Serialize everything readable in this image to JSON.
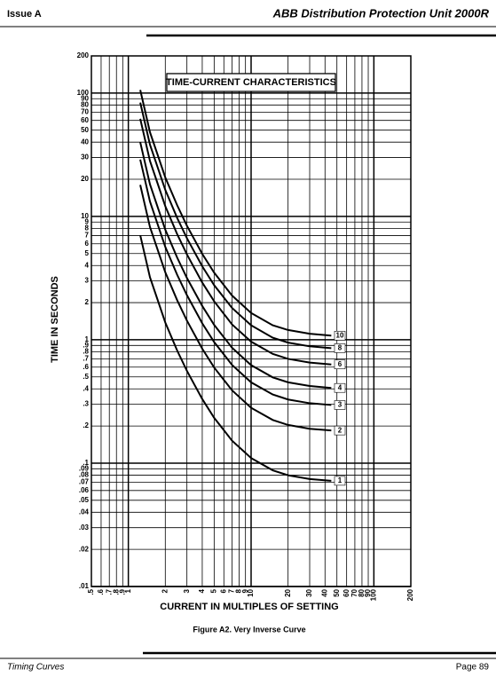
{
  "header": {
    "left": "Issue A",
    "right": "ABB Distribution Protection Unit 2000R"
  },
  "chart_data": {
    "type": "line",
    "title": "TIME-CURRENT CHARACTERISTICS",
    "x_label": "CURRENT IN MULTIPLES OF SETTING",
    "y_label": "TIME IN SECONDS",
    "log_x": true,
    "log_y": true,
    "grid": true,
    "x": [
      1.25,
      1.5,
      2,
      2.5,
      3,
      4,
      5,
      7,
      10,
      15,
      20,
      30,
      45
    ],
    "series": [
      {
        "name": "1",
        "color": "#000000",
        "values": [
          7.04,
          3.21,
          1.38,
          0.817,
          0.56,
          0.331,
          0.233,
          0.152,
          0.11,
          0.0875,
          0.0798,
          0.0744,
          0.0719
        ]
      },
      {
        "name": "2",
        "color": "#000000",
        "values": [
          18.0,
          8.2,
          3.52,
          2.09,
          1.43,
          0.846,
          0.596,
          0.389,
          0.281,
          0.224,
          0.204,
          0.19,
          0.184
        ]
      },
      {
        "name": "3",
        "color": "#000000",
        "values": [
          28.9,
          13.2,
          5.66,
          3.36,
          2.3,
          1.36,
          0.958,
          0.625,
          0.452,
          0.36,
          0.328,
          0.306,
          0.296
        ]
      },
      {
        "name": "4",
        "color": "#000000",
        "values": [
          39.9,
          18.2,
          7.8,
          4.63,
          3.17,
          1.88,
          1.32,
          0.861,
          0.623,
          0.496,
          0.452,
          0.422,
          0.407
        ]
      },
      {
        "name": "6",
        "color": "#000000",
        "values": [
          61.8,
          28.2,
          12.1,
          7.17,
          4.92,
          2.91,
          2.05,
          1.33,
          0.966,
          0.768,
          0.7,
          0.653,
          0.631
        ]
      },
      {
        "name": "8",
        "color": "#000000",
        "values": [
          83.7,
          38.2,
          16.4,
          9.71,
          6.66,
          3.94,
          2.77,
          1.81,
          1.31,
          1.04,
          0.949,
          0.885,
          0.855
        ]
      },
      {
        "name": "10",
        "color": "#000000",
        "values": [
          106,
          48.2,
          20.7,
          12.3,
          8.4,
          4.97,
          3.5,
          2.28,
          1.65,
          1.31,
          1.2,
          1.12,
          1.08
        ]
      }
    ],
    "xlim": [
      0.5,
      200
    ],
    "ylim": [
      0.01,
      200
    ],
    "xticks": [
      {
        "value": 0.5,
        "label": ".5"
      },
      {
        "value": 0.6,
        "label": ".6"
      },
      {
        "value": 0.7,
        "label": ".7"
      },
      {
        "value": 0.8,
        "label": ".8"
      },
      {
        "value": 0.9,
        "label": ".9"
      },
      1,
      2,
      3,
      4,
      5,
      6,
      7,
      8,
      9,
      10,
      20,
      30,
      40,
      50,
      60,
      70,
      80,
      90,
      100,
      200
    ],
    "yticks": [
      200,
      100,
      90,
      80,
      70,
      60,
      50,
      40,
      30,
      20,
      10,
      9,
      8,
      7,
      6,
      5,
      4,
      3,
      2,
      1,
      {
        "value": 0.9,
        "label": ".9"
      },
      {
        "value": 0.8,
        "label": ".8"
      },
      {
        "value": 0.7,
        "label": ".7"
      },
      {
        "value": 0.6,
        "label": ".6"
      },
      {
        "value": 0.5,
        "label": ".5"
      },
      {
        "value": 0.4,
        "label": ".4"
      },
      {
        "value": 0.3,
        "label": ".3"
      },
      {
        "value": 0.2,
        "label": ".2"
      },
      {
        "value": 0.1,
        "label": ".1"
      },
      {
        "value": 0.09,
        "label": ".09"
      },
      {
        "value": 0.08,
        "label": ".08"
      },
      {
        "value": 0.07,
        "label": ".07"
      },
      {
        "value": 0.06,
        "label": ".06"
      },
      {
        "value": 0.05,
        "label": ".05"
      },
      {
        "value": 0.04,
        "label": ".04"
      },
      {
        "value": 0.03,
        "label": ".03"
      },
      {
        "value": 0.02,
        "label": ".02"
      },
      {
        "value": 0.01,
        "label": ".01"
      }
    ]
  },
  "caption": "Figure A2. Very Inverse Curve",
  "footer": {
    "left": "Timing Curves",
    "right": "Page 89"
  }
}
